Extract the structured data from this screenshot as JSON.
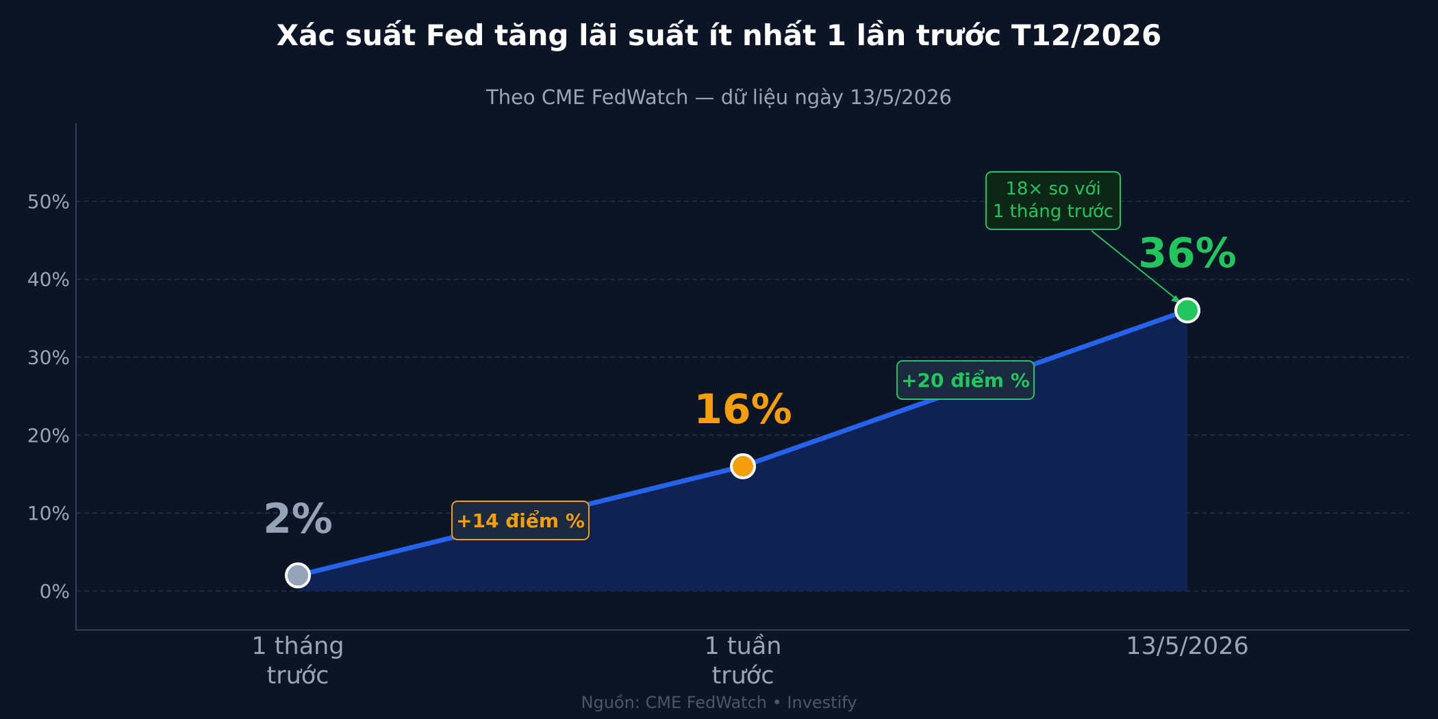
{
  "chart_data": {
    "type": "line",
    "title": "Xác suất Fed tăng lãi suất ít nhất 1 lần trước T12/2026",
    "subtitle": "Theo CME FedWatch — dữ liệu ngày 13/5/2026",
    "categories": [
      [
        "1 tháng",
        "trước"
      ],
      [
        "1 tuần",
        "trước"
      ],
      [
        "13/5/2026"
      ]
    ],
    "values": [
      2,
      16,
      36
    ],
    "value_labels": [
      "2%",
      "16%",
      "36%"
    ],
    "ylim": [
      -5,
      60
    ],
    "yticks": [
      0,
      10,
      20,
      30,
      40,
      50
    ],
    "ytick_labels": [
      "0%",
      "10%",
      "20%",
      "30%",
      "40%",
      "50%"
    ],
    "grid": true,
    "area_fill": true,
    "colors": {
      "background": "#0b1526",
      "line": "#2563eb",
      "area": "#12245a",
      "grid": "#23324a",
      "axis_text": "#9aa6b8",
      "title": "#ffffff",
      "point_start": "#94a3b8",
      "point_mid": "#f59e0b",
      "point_end": "#22c55e",
      "annotation_bg": "#1c2a40",
      "callout_bg": "#0c2618"
    },
    "annotations": [
      {
        "text": "+14 điểm %",
        "color": "#f59e0b",
        "between": [
          0,
          1
        ]
      },
      {
        "text": "+20 điểm %",
        "color": "#22c55e",
        "between": [
          1,
          2
        ]
      }
    ],
    "callout": {
      "lines": [
        "18× so với",
        "1 tháng trước"
      ],
      "color": "#22c55e",
      "target": 2
    },
    "source": "Nguồn: CME FedWatch  •  Investify"
  }
}
